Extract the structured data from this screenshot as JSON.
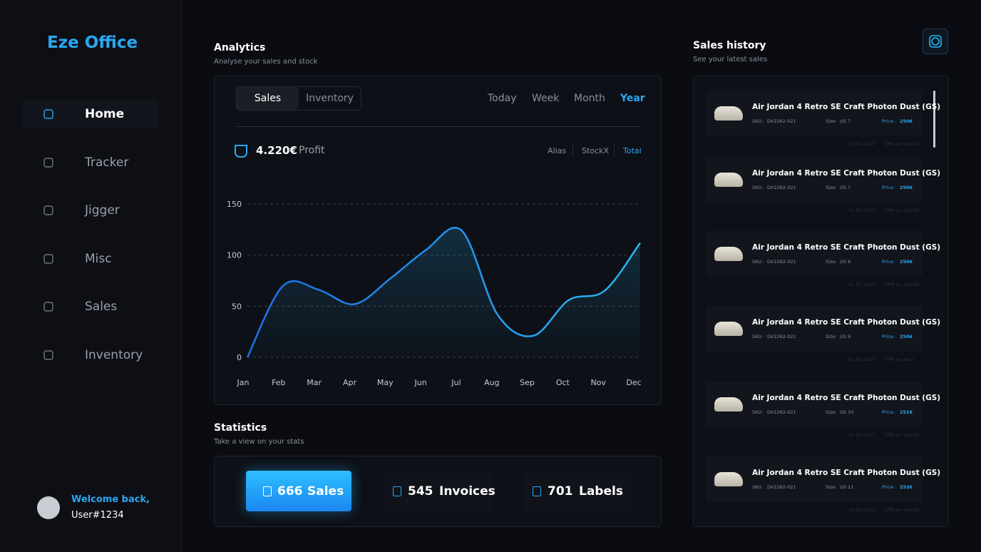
{
  "sidebar": {
    "brand": "Eze Office",
    "nav": [
      "Home",
      "Tracker",
      "Jigger",
      "Misc",
      "Sales",
      "Inventory"
    ],
    "active": "Home",
    "welcome": "Welcome back,",
    "user": "User#1234"
  },
  "analytics": {
    "title": "Analytics",
    "subtitle": "Analyse your sales and stock",
    "tabs": [
      "Sales",
      "Inventory"
    ],
    "periods": [
      "Today",
      "Week",
      "Month",
      "Year"
    ],
    "profit_value": "4.220€",
    "profit_label": "Profit",
    "sources": [
      "Alias",
      "StockX",
      "Total"
    ]
  },
  "chart_data": {
    "type": "line",
    "categories": [
      "Jan",
      "Feb",
      "Mar",
      "Apr",
      "May",
      "Jun",
      "Jul",
      "Aug",
      "Sep",
      "Oct",
      "Nov",
      "Dec"
    ],
    "values": [
      0,
      70,
      66,
      52,
      77,
      105,
      124,
      42,
      21,
      56,
      65,
      112
    ],
    "color": "#29b6f6",
    "ylim": [
      0,
      150
    ],
    "yticks": [
      0,
      50,
      100,
      150
    ],
    "grid": true
  },
  "statistics": {
    "title": "Statistics",
    "subtitle": "Take a view on your stats",
    "items": [
      {
        "value": "666",
        "label": "Sales"
      },
      {
        "value": "545",
        "label": "Invoices"
      },
      {
        "value": "701",
        "label": "Labels"
      }
    ]
  },
  "sales_history": {
    "title": "Sales history",
    "subtitle": "See your latest sales",
    "sku_label": "SKU:",
    "size_label": "Size:",
    "price_label": "Price:",
    "items": [
      {
        "name": "Air Jordan 4 Retro SE Craft Photon Dust (GS)",
        "sku": "DV2262-021",
        "size": "US 7",
        "price": "250€",
        "date": "01.03.2023",
        "source": "5PM on StockX"
      },
      {
        "name": "Air Jordan 4 Retro SE Craft Photon Dust (GS)",
        "sku": "DV2262-021",
        "size": "US 7",
        "price": "250€",
        "date": "01.03.2023",
        "source": "5PM on StockX"
      },
      {
        "name": "Air Jordan 4 Retro SE Craft Photon Dust (GS)",
        "sku": "DV2262-021",
        "size": "US 8",
        "price": "250€",
        "date": "01.03.2023",
        "source": "5PM on StockX"
      },
      {
        "name": "Air Jordan 4 Retro SE Craft Photon Dust (GS)",
        "sku": "DV2262-021",
        "size": "US 9",
        "price": "250€",
        "date": "01.03.2023",
        "source": "5PM on Alias"
      },
      {
        "name": "Air Jordan 4 Retro SE Craft Photon Dust (GS)",
        "sku": "DV2262-021",
        "size": "US 10",
        "price": "251€",
        "date": "01.03.2023",
        "source": "5PM on StockX"
      },
      {
        "name": "Air Jordan 4 Retro SE Craft Photon Dust (GS)",
        "sku": "DV2262-021",
        "size": "US 11",
        "price": "252€",
        "date": "01.03.2023",
        "source": "5PM on StockX"
      }
    ]
  }
}
